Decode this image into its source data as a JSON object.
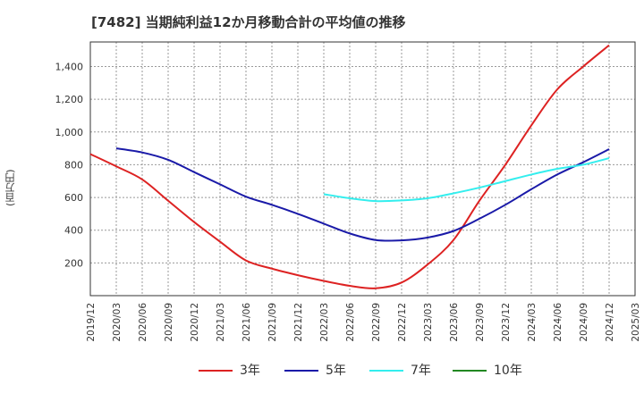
{
  "chart_data": {
    "type": "line",
    "title": "[7482]  当期純利益12か月移動合計の平均値の推移",
    "ylabel": "(百万円)",
    "xlabel": "",
    "ylim": [
      0,
      1550
    ],
    "yticks": [
      200,
      400,
      600,
      800,
      1000,
      1200,
      1400
    ],
    "ytick_labels": [
      "200",
      "400",
      "600",
      "800",
      "1,000",
      "1,200",
      "1,400"
    ],
    "xtick_labels": [
      "2019/12",
      "2020/03",
      "2020/06",
      "2020/09",
      "2020/12",
      "2021/03",
      "2021/06",
      "2021/09",
      "2021/12",
      "2022/03",
      "2022/06",
      "2022/09",
      "2022/12",
      "2023/03",
      "2023/06",
      "2023/09",
      "2023/12",
      "2024/03",
      "2024/06",
      "2024/09",
      "2024/12",
      "2025/03"
    ],
    "grid": true,
    "legend_position": "bottom",
    "series": [
      {
        "name": "3年",
        "color": "#dd2222",
        "x": [
          "2019/12",
          "2020/03",
          "2020/06",
          "2020/09",
          "2020/12",
          "2021/03",
          "2021/06",
          "2021/09",
          "2021/12",
          "2022/03",
          "2022/06",
          "2022/09",
          "2022/12",
          "2023/03",
          "2023/06",
          "2023/09",
          "2023/12",
          "2024/03",
          "2024/06",
          "2024/09",
          "2024/12"
        ],
        "values": [
          865,
          790,
          710,
          580,
          450,
          330,
          215,
          165,
          125,
          90,
          60,
          45,
          80,
          190,
          340,
          580,
          800,
          1040,
          1260,
          1400,
          1530
        ]
      },
      {
        "name": "5年",
        "color": "#1a1aa8",
        "x": [
          "2020/03",
          "2020/06",
          "2020/09",
          "2020/12",
          "2021/03",
          "2021/06",
          "2021/09",
          "2021/12",
          "2022/03",
          "2022/06",
          "2022/09",
          "2022/12",
          "2023/03",
          "2023/06",
          "2023/09",
          "2023/12",
          "2024/03",
          "2024/06",
          "2024/09",
          "2024/12"
        ],
        "values": [
          900,
          875,
          830,
          755,
          680,
          605,
          555,
          500,
          440,
          380,
          340,
          338,
          355,
          395,
          470,
          555,
          650,
          740,
          815,
          895
        ]
      },
      {
        "name": "7年",
        "color": "#33eeee",
        "x": [
          "2022/03",
          "2022/06",
          "2022/09",
          "2022/12",
          "2023/03",
          "2023/06",
          "2023/09",
          "2023/12",
          "2024/03",
          "2024/06",
          "2024/09",
          "2024/12"
        ],
        "values": [
          620,
          595,
          578,
          582,
          595,
          625,
          660,
          700,
          740,
          775,
          800,
          840
        ]
      },
      {
        "name": "10年",
        "color": "#228822",
        "x": [],
        "values": []
      }
    ]
  }
}
